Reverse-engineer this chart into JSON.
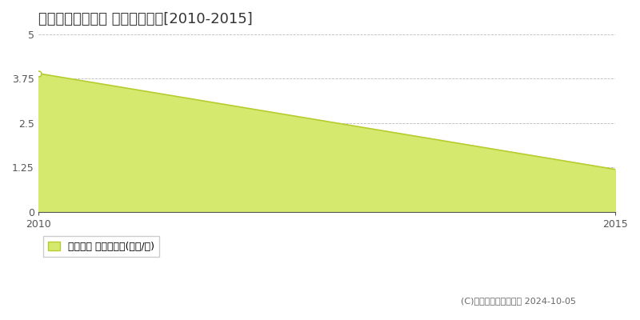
{
  "title": "雲仙市千々石町庚 土地価格推移[2010-2015]",
  "x": [
    2010,
    2015
  ],
  "y": [
    3.9,
    1.2
  ],
  "xlim": [
    2010,
    2015
  ],
  "ylim": [
    0,
    5
  ],
  "yticks": [
    0,
    1.25,
    2.5,
    3.75,
    5
  ],
  "xticks": [
    2010,
    2015
  ],
  "fill_color": "#d4e96e",
  "fill_alpha": 1.0,
  "line_color": "#b8cc30",
  "marker_color": "#b8cc30",
  "grid_color": "#aaaaaa",
  "background_color": "#ffffff",
  "legend_label": "土地価格 平均坪単価(万円/坪)",
  "copyright": "(C)土地価格ドットコム 2024-10-05",
  "title_fontsize": 13,
  "axis_fontsize": 9,
  "legend_fontsize": 9
}
